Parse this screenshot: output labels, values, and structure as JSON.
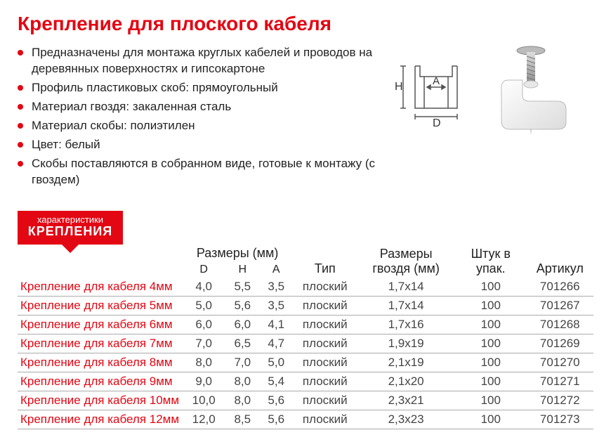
{
  "title": "Крепление для плоского кабеля",
  "bullets": [
    "Предназначены для монтажа круглых кабелей и проводов на деревянных поверхностях и гипсокартоне",
    "Профиль пластиковых скоб: прямоугольный",
    "Материал гвоздя: закаленная сталь",
    "Материал скобы: полиэтилен",
    "Цвет: белый",
    "Скобы поставляются в собранном виде, готовые к монтажу (с гвоздем)"
  ],
  "diagram_labels": {
    "H": "H",
    "A": "A",
    "D": "D"
  },
  "badge": {
    "small": "характеристики",
    "big": "КРЕПЛЕНИЯ"
  },
  "table": {
    "headers": {
      "sizes": "Размеры (мм)",
      "D": "D",
      "H": "H",
      "A": "A",
      "type": "Тип",
      "nail": "Размеры гвоздя (мм)",
      "pack": "Штук в упак.",
      "sku": "Артикул"
    },
    "rows": [
      {
        "name": "Крепление для кабеля 4мм",
        "D": "4,0",
        "H": "5,5",
        "A": "3,5",
        "type": "плоский",
        "nail": "1,7x14",
        "pack": "100",
        "sku": "701266"
      },
      {
        "name": "Крепление для кабеля 5мм",
        "D": "5,0",
        "H": "5,6",
        "A": "3,5",
        "type": "плоский",
        "nail": "1,7x14",
        "pack": "100",
        "sku": "701267"
      },
      {
        "name": "Крепление для кабеля 6мм",
        "D": "6,0",
        "H": "6,0",
        "A": "4,1",
        "type": "плоский",
        "nail": "1,7x16",
        "pack": "100",
        "sku": "701268"
      },
      {
        "name": "Крепление для кабеля 7мм",
        "D": "7,0",
        "H": "6,5",
        "A": "4,7",
        "type": "плоский",
        "nail": "1,9x19",
        "pack": "100",
        "sku": "701269"
      },
      {
        "name": "Крепление для кабеля 8мм",
        "D": "8,0",
        "H": "7,0",
        "A": "5,0",
        "type": "плоский",
        "nail": "2,1x19",
        "pack": "100",
        "sku": "701270"
      },
      {
        "name": "Крепление для кабеля 9мм",
        "D": "9,0",
        "H": "8,0",
        "A": "5,4",
        "type": "плоский",
        "nail": "2,1x20",
        "pack": "100",
        "sku": "701271"
      },
      {
        "name": "Крепление для кабеля 10мм",
        "D": "10,0",
        "H": "8,0",
        "A": "5,6",
        "type": "плоский",
        "nail": "2,3x21",
        "pack": "100",
        "sku": "701272"
      },
      {
        "name": "Крепление для кабеля 12мм",
        "D": "12,0",
        "H": "8,5",
        "A": "5,6",
        "type": "плоский",
        "nail": "2,3x23",
        "pack": "100",
        "sku": "701273"
      }
    ]
  },
  "colors": {
    "accent": "#e30613",
    "text": "#333333",
    "rule": "#aaaaaa"
  }
}
